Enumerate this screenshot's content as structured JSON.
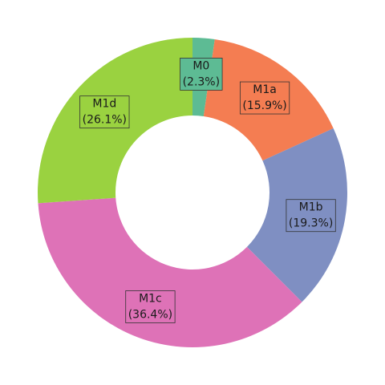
{
  "chart_data": {
    "type": "pie",
    "variant": "donut",
    "title": "",
    "slices": [
      {
        "label": "M0",
        "value": 2.3,
        "pct_label": "(2.3%)",
        "color": "#5dbb94"
      },
      {
        "label": "M1a",
        "value": 15.9,
        "pct_label": "(15.9%)",
        "color": "#f47d52"
      },
      {
        "label": "M1b",
        "value": 19.3,
        "pct_label": "(19.3%)",
        "color": "#7f8fc2"
      },
      {
        "label": "M1c",
        "value": 36.4,
        "pct_label": "(36.4%)",
        "color": "#de72b7"
      },
      {
        "label": "M1d",
        "value": 26.1,
        "pct_label": "(26.1%)",
        "color": "#9ad240"
      }
    ],
    "start": "top",
    "direction": "clockwise",
    "legend": "none"
  }
}
